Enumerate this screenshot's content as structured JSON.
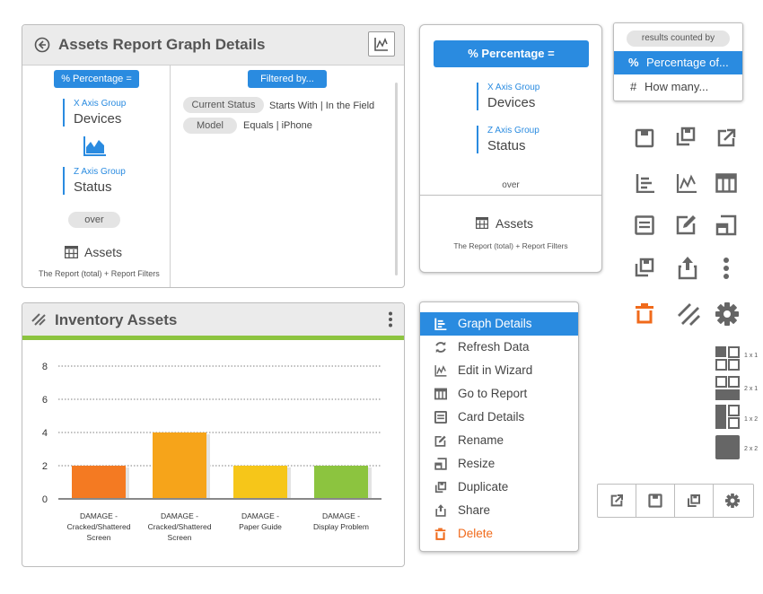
{
  "colors": {
    "accent": "#2a8be0",
    "danger": "#f06a1b",
    "green": "#8cc43f"
  },
  "assets_report": {
    "title": "Assets Report Graph Details",
    "percentage_pill": "% Percentage =",
    "filtered_by": "Filtered by...",
    "x_axis_label": "X Axis Group",
    "x_axis_value": "Devices",
    "z_axis_label": "Z Axis Group",
    "z_axis_value": "Status",
    "over": "over",
    "assets": "Assets",
    "footnote": "The Report (total) + Report Filters",
    "filters": [
      {
        "field": "Current Status",
        "condition": "Starts With | In the Field"
      },
      {
        "field": "Model",
        "condition": "Equals | iPhone"
      }
    ]
  },
  "mini_panel": {
    "percentage_pill": "% Percentage =",
    "x_axis_label": "X Axis Group",
    "x_axis_value": "Devices",
    "z_axis_label": "Z Axis Group",
    "z_axis_value": "Status",
    "over": "over",
    "assets": "Assets",
    "footnote": "The Report (total) + Report Filters"
  },
  "results_dropdown": {
    "header": "results counted by",
    "options": [
      {
        "symbol": "%",
        "label": "Percentage of...",
        "selected": true
      },
      {
        "symbol": "#",
        "label": "How many...",
        "selected": false
      }
    ]
  },
  "inventory": {
    "title": "Inventory Assets"
  },
  "chart_data": {
    "type": "bar",
    "categories": [
      "DAMAGE - Cracked/Shattered Screen",
      "DAMAGE - Cracked/Shattered Screen",
      "DAMAGE - Paper Guide",
      "DAMAGE - Display Problem"
    ],
    "category_lines": [
      [
        "DAMAGE -",
        "Cracked/Shattered",
        "Screen"
      ],
      [
        "DAMAGE -",
        "Cracked/Shattered",
        "Screen"
      ],
      [
        "DAMAGE -",
        "Paper Guide"
      ],
      [
        "DAMAGE -",
        "Display Problem"
      ]
    ],
    "values": [
      2,
      4,
      2,
      2
    ],
    "colors": [
      "#f47a22",
      "#f6a41a",
      "#f6c619",
      "#8cc43f"
    ],
    "yticks": [
      "0",
      "2",
      "4",
      "6",
      "8"
    ],
    "ylim": [
      0,
      8
    ],
    "grid": true
  },
  "context_menu": {
    "items": [
      {
        "label": "Graph Details",
        "icon": "graph-details-icon",
        "selected": true
      },
      {
        "label": "Refresh Data",
        "icon": "refresh-icon"
      },
      {
        "label": "Edit in Wizard",
        "icon": "wizard-chart-icon"
      },
      {
        "label": "Go to Report",
        "icon": "report-table-icon"
      },
      {
        "label": "Card Details",
        "icon": "card-details-icon"
      },
      {
        "label": "Rename",
        "icon": "rename-icon"
      },
      {
        "label": "Resize",
        "icon": "resize-icon"
      },
      {
        "label": "Duplicate",
        "icon": "duplicate-icon"
      },
      {
        "label": "Share",
        "icon": "share-icon"
      },
      {
        "label": "Delete",
        "icon": "delete-icon",
        "danger": true
      }
    ]
  },
  "size_options": [
    "1 x 1",
    "2 x 1",
    "1 x 2",
    "2 x 2"
  ]
}
